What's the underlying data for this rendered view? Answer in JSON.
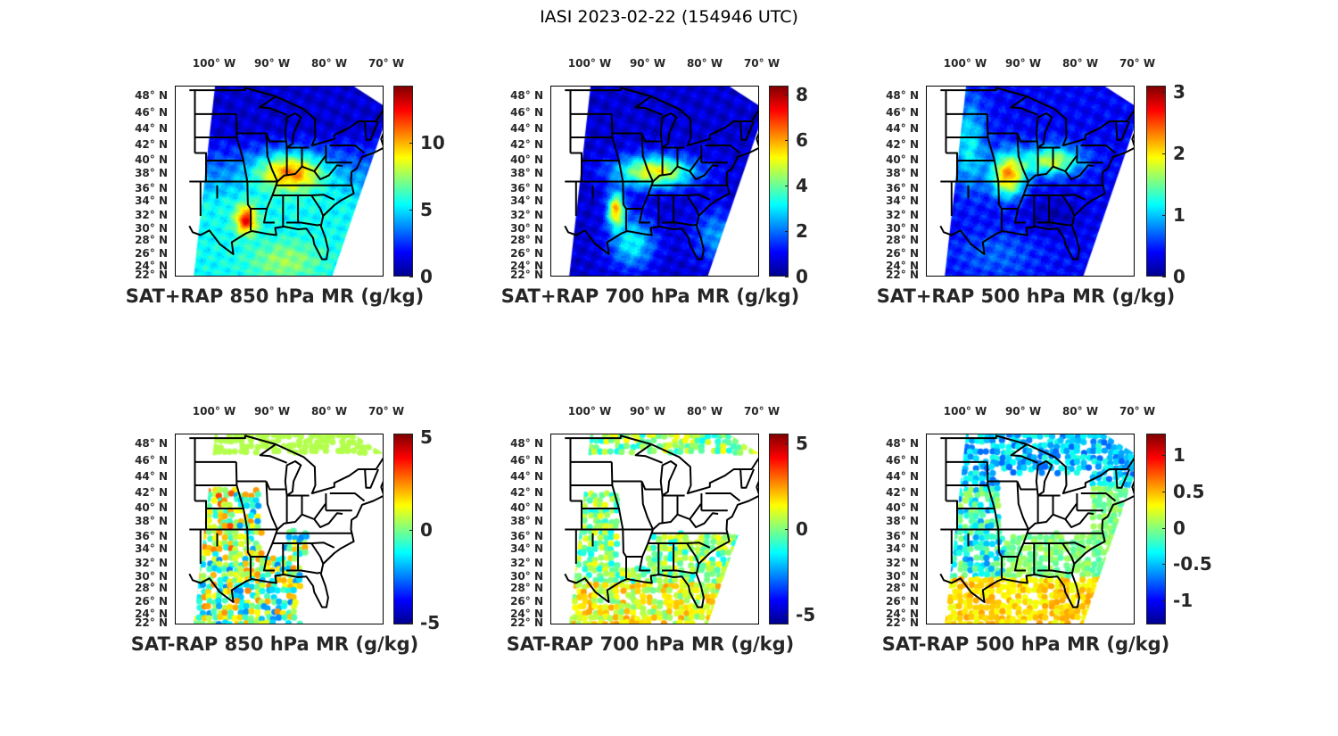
{
  "figure": {
    "title": "IASI 2023-02-22 (154946 UTC)"
  },
  "map_axes": {
    "lon_ticks": [
      "100° W",
      "90° W",
      "80° W",
      "70° W"
    ],
    "lat_ticks": [
      "48° N",
      "46° N",
      "44° N",
      "42° N",
      "40° N",
      "38° N",
      "36° N",
      "34° N",
      "32° N",
      "30° N",
      "28° N",
      "26° N",
      "24° N",
      "22° N"
    ]
  },
  "colormap": "jet",
  "chart_data": [
    {
      "type": "heatmap",
      "title": "SAT+RAP 850 hPa MR (g/kg)",
      "colorbar": {
        "range": [
          0,
          14.3
        ],
        "ticks": [
          0,
          5,
          10
        ],
        "tick_labels": [
          "0",
          "5",
          "10"
        ]
      }
    },
    {
      "type": "heatmap",
      "title": "SAT+RAP 700 hPa MR (g/kg)",
      "colorbar": {
        "range": [
          0,
          8.4
        ],
        "ticks": [
          0,
          2,
          4,
          6,
          8
        ],
        "tick_labels": [
          "0",
          "2",
          "4",
          "6",
          "8"
        ]
      }
    },
    {
      "type": "heatmap",
      "title": "SAT+RAP 500 hPa MR (g/kg)",
      "colorbar": {
        "range": [
          0,
          3.1
        ],
        "ticks": [
          0,
          1,
          2,
          3
        ],
        "tick_labels": [
          "0",
          "1",
          "2",
          "3"
        ]
      }
    },
    {
      "type": "scatter",
      "title": "SAT-RAP 850 hPa MR (g/kg)",
      "colorbar": {
        "range": [
          -5.1,
          5.2
        ],
        "ticks": [
          -5,
          0,
          5
        ],
        "tick_labels": [
          "-5",
          "0",
          "5"
        ]
      }
    },
    {
      "type": "scatter",
      "title": "SAT-RAP 700 hPa MR (g/kg)",
      "colorbar": {
        "range": [
          -5.6,
          5.6
        ],
        "ticks": [
          -5,
          0,
          5
        ],
        "tick_labels": [
          "-5",
          "0",
          "5"
        ]
      }
    },
    {
      "type": "scatter",
      "title": "SAT-RAP 500 hPa MR (g/kg)",
      "colorbar": {
        "range": [
          -1.33,
          1.3
        ],
        "ticks": [
          -1,
          -0.5,
          0,
          0.5,
          1
        ],
        "tick_labels": [
          "-1",
          "-0.5",
          "0",
          "0.5",
          "1"
        ]
      }
    }
  ]
}
